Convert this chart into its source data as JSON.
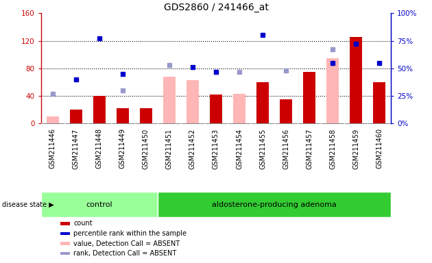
{
  "title": "GDS2860 / 241466_at",
  "samples": [
    "GSM211446",
    "GSM211447",
    "GSM211448",
    "GSM211449",
    "GSM211450",
    "GSM211451",
    "GSM211452",
    "GSM211453",
    "GSM211454",
    "GSM211455",
    "GSM211456",
    "GSM211457",
    "GSM211458",
    "GSM211459",
    "GSM211460"
  ],
  "count": [
    null,
    20,
    40,
    22,
    22,
    null,
    null,
    42,
    null,
    60,
    35,
    75,
    null,
    125,
    60
  ],
  "percentile_rank": [
    null,
    40,
    77,
    45,
    null,
    null,
    51,
    47,
    null,
    80,
    null,
    null,
    55,
    72,
    55
  ],
  "value_absent": [
    10,
    null,
    null,
    null,
    22,
    68,
    63,
    null,
    43,
    null,
    null,
    null,
    95,
    null,
    null
  ],
  "rank_absent": [
    27,
    null,
    null,
    30,
    null,
    53,
    null,
    null,
    47,
    null,
    48,
    null,
    67,
    null,
    null
  ],
  "control_count": 5,
  "adenoma_count": 10,
  "ylim_left": [
    0,
    160
  ],
  "ylim_right": [
    0,
    100
  ],
  "yticks_left": [
    0,
    40,
    80,
    120,
    160
  ],
  "yticks_right": [
    0,
    25,
    50,
    75,
    100
  ],
  "ytick_labels_left": [
    "0",
    "40",
    "80",
    "120",
    "160"
  ],
  "ytick_labels_right": [
    "0%",
    "25%",
    "50%",
    "75%",
    "100%"
  ],
  "left_axis_color": "#cc0000",
  "right_axis_color": "#0000cc",
  "bar_color_count": "#cc0000",
  "bar_color_value_absent": "#ffb6b6",
  "dot_color_rank": "#0000cc",
  "dot_color_rank_absent": "#9999cc",
  "control_bg": "#99ff99",
  "adenoma_bg": "#33cc33",
  "xticklabel_bg": "#bbbbbb",
  "plot_bg": "white",
  "grid_color": "black",
  "bar_width": 0.55
}
